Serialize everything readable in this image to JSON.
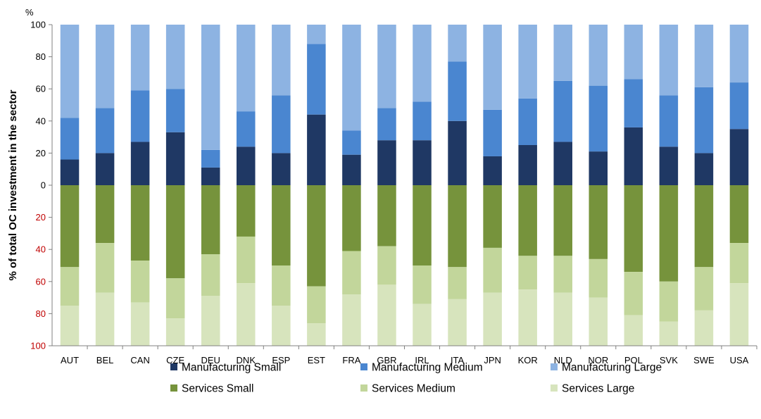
{
  "chart_data": {
    "type": "bar",
    "stacked": true,
    "diverging": true,
    "unit_label": "%",
    "ylabel": "% of total OC investment in the sector",
    "ylim_up": [
      0,
      100
    ],
    "ylim_down": [
      0,
      100
    ],
    "yticks_up": [
      "0",
      "20",
      "40",
      "60",
      "80",
      "100"
    ],
    "yticks_down": [
      "20",
      "40",
      "60",
      "80",
      "100"
    ],
    "categories": [
      "AUT",
      "BEL",
      "CAN",
      "CZE",
      "DEU",
      "DNK",
      "ESP",
      "EST",
      "FRA",
      "GBR",
      "IRL",
      "ITA",
      "JPN",
      "KOR",
      "NLD",
      "NOR",
      "POL",
      "SVK",
      "SWE",
      "USA"
    ],
    "series_up": [
      {
        "name": "Manufacturing Small",
        "color": "#1f3864",
        "values": [
          16,
          20,
          27,
          33,
          11,
          24,
          20,
          44,
          19,
          28,
          28,
          40,
          18,
          25,
          27,
          21,
          36,
          24,
          20,
          35
        ]
      },
      {
        "name": "Manufacturing Medium",
        "color": "#4a86d0",
        "values": [
          26,
          28,
          32,
          27,
          11,
          22,
          36,
          44,
          15,
          20,
          24,
          37,
          29,
          29,
          38,
          41,
          30,
          32,
          41,
          29
        ]
      },
      {
        "name": "Manufacturing Large",
        "color": "#8db3e2",
        "values": [
          58,
          52,
          41,
          40,
          78,
          54,
          44,
          12,
          66,
          52,
          48,
          23,
          53,
          46,
          35,
          38,
          34,
          44,
          39,
          36
        ]
      }
    ],
    "series_down": [
      {
        "name": "Services Small",
        "color": "#76933c",
        "values": [
          51,
          36,
          47,
          58,
          43,
          32,
          50,
          63,
          41,
          38,
          50,
          51,
          39,
          44,
          44,
          46,
          54,
          60,
          51,
          36
        ]
      },
      {
        "name": "Services Medium",
        "color": "#c2d69b",
        "values": [
          24,
          31,
          26,
          25,
          26,
          29,
          25,
          23,
          27,
          24,
          24,
          20,
          28,
          21,
          23,
          24,
          27,
          25,
          27,
          25
        ]
      },
      {
        "name": "Services Large",
        "color": "#d7e4bd",
        "values": [
          25,
          33,
          27,
          17,
          31,
          39,
          25,
          14,
          32,
          38,
          26,
          29,
          33,
          35,
          33,
          30,
          19,
          15,
          22,
          39
        ]
      }
    ],
    "legend": [
      {
        "name": "Manufacturing Small",
        "color": "#1f3864"
      },
      {
        "name": "Manufacturing Medium",
        "color": "#4a86d0"
      },
      {
        "name": "Manufacturing Large",
        "color": "#8db3e2"
      },
      {
        "name": "Services Small",
        "color": "#76933c"
      },
      {
        "name": "Services Medium",
        "color": "#c2d69b"
      },
      {
        "name": "Services Large",
        "color": "#d7e4bd"
      }
    ],
    "legend_position": "bottom",
    "grid": false
  }
}
